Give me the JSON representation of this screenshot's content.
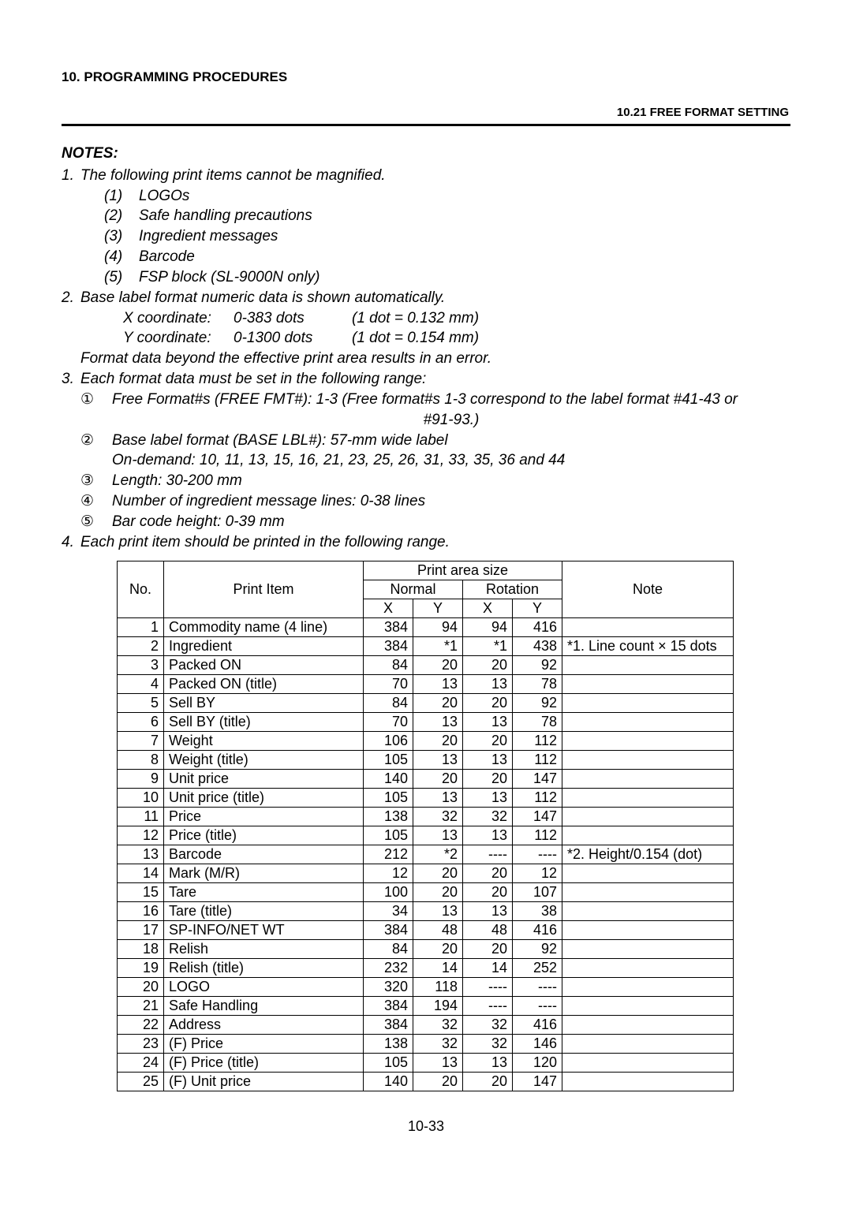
{
  "chapter_heading": "10.  PROGRAMMING PROCEDURES",
  "section_heading": "10.21 FREE FORMAT SETTING",
  "notes_title": "NOTES:",
  "note1": {
    "num": "1.",
    "text": "The following print items cannot be magnified.",
    "items": [
      {
        "n": "(1)",
        "t": "LOGOs"
      },
      {
        "n": "(2)",
        "t": "Safe handling precautions"
      },
      {
        "n": "(3)",
        "t": "Ingredient messages"
      },
      {
        "n": "(4)",
        "t": "Barcode"
      },
      {
        "n": "(5)",
        "t": "FSP block (SL-9000N only)"
      }
    ]
  },
  "note2": {
    "num": "2.",
    "text": "Base label format numeric data is shown automatically.",
    "coords": [
      {
        "label": "X coordinate:",
        "range": "0-383 dots",
        "extra": "(1 dot = 0.132 mm)"
      },
      {
        "label": "Y coordinate:",
        "range": "0-1300 dots",
        "extra": "(1 dot = 0.154 mm)"
      }
    ],
    "tail": "Format data beyond the effective print area results in an error."
  },
  "note3": {
    "num": "3.",
    "text": "Each format data must be set in the following range:",
    "items": [
      {
        "n": "①",
        "t": "Free Format#s (FREE FMT#): 1-3 (Free format#s 1-3 correspond to the label format #41-43 or",
        "cont_center": "#91-93.)"
      },
      {
        "n": "②",
        "t": "Base label format (BASE LBL#):    57-mm wide label",
        "cont": "On-demand: 10, 11, 13, 15, 16, 21, 23, 25, 26, 31, 33, 35, 36 and 44"
      },
      {
        "n": "③",
        "t": "Length:   30-200 mm"
      },
      {
        "n": "④",
        "t": "Number of ingredient message lines:   0-38 lines"
      },
      {
        "n": "⑤",
        "t": "Bar code height:   0-39 mm"
      }
    ]
  },
  "note4": {
    "num": "4.",
    "text": "Each print item should be printed in the following range."
  },
  "table": {
    "head": {
      "no": "No.",
      "item": "Print Item",
      "area": "Print area size",
      "normal": "Normal",
      "rotation": "Rotation",
      "note": "Note",
      "x": "X",
      "y": "Y"
    },
    "rows": [
      {
        "no": "1",
        "item": "Commodity name (4 line)",
        "nx": "384",
        "ny": "94",
        "rx": "94",
        "ry": "416",
        "note": ""
      },
      {
        "no": "2",
        "item": "Ingredient",
        "nx": "384",
        "ny": "*1",
        "rx": "*1",
        "ry": "438",
        "note": "*1. Line count  ×  15 dots"
      },
      {
        "no": "3",
        "item": "Packed ON",
        "nx": "84",
        "ny": "20",
        "rx": "20",
        "ry": "92",
        "note": ""
      },
      {
        "no": "4",
        "item": "Packed ON (title)",
        "nx": "70",
        "ny": "13",
        "rx": "13",
        "ry": "78",
        "note": ""
      },
      {
        "no": "5",
        "item": "Sell BY",
        "nx": "84",
        "ny": "20",
        "rx": "20",
        "ry": "92",
        "note": ""
      },
      {
        "no": "6",
        "item": "Sell BY (title)",
        "nx": "70",
        "ny": "13",
        "rx": "13",
        "ry": "78",
        "note": ""
      },
      {
        "no": "7",
        "item": "Weight",
        "nx": "106",
        "ny": "20",
        "rx": "20",
        "ry": "112",
        "note": ""
      },
      {
        "no": "8",
        "item": "Weight (title)",
        "nx": "105",
        "ny": "13",
        "rx": "13",
        "ry": "112",
        "note": ""
      },
      {
        "no": "9",
        "item": "Unit price",
        "nx": "140",
        "ny": "20",
        "rx": "20",
        "ry": "147",
        "note": ""
      },
      {
        "no": "10",
        "item": "Unit price (title)",
        "nx": "105",
        "ny": "13",
        "rx": "13",
        "ry": "112",
        "note": ""
      },
      {
        "no": "11",
        "item": "Price",
        "nx": "138",
        "ny": "32",
        "rx": "32",
        "ry": "147",
        "note": ""
      },
      {
        "no": "12",
        "item": "Price (title)",
        "nx": "105",
        "ny": "13",
        "rx": "13",
        "ry": "112",
        "note": ""
      },
      {
        "no": "13",
        "item": "Barcode",
        "nx": "212",
        "ny": "*2",
        "rx": "----",
        "ry": "----",
        "note": "*2. Height/0.154 (dot)"
      },
      {
        "no": "14",
        "item": "Mark (M/R)",
        "nx": "12",
        "ny": "20",
        "rx": "20",
        "ry": "12",
        "note": ""
      },
      {
        "no": "15",
        "item": "Tare",
        "nx": "100",
        "ny": "20",
        "rx": "20",
        "ry": "107",
        "note": ""
      },
      {
        "no": "16",
        "item": "Tare (title)",
        "nx": "34",
        "ny": "13",
        "rx": "13",
        "ry": "38",
        "note": ""
      },
      {
        "no": "17",
        "item": "SP-INFO/NET WT",
        "nx": "384",
        "ny": "48",
        "rx": "48",
        "ry": "416",
        "note": ""
      },
      {
        "no": "18",
        "item": "Relish",
        "nx": "84",
        "ny": "20",
        "rx": "20",
        "ry": "92",
        "note": ""
      },
      {
        "no": "19",
        "item": "Relish (title)",
        "nx": "232",
        "ny": "14",
        "rx": "14",
        "ry": "252",
        "note": ""
      },
      {
        "no": "20",
        "item": "LOGO",
        "nx": "320",
        "ny": "118",
        "rx": "----",
        "ry": "----",
        "note": ""
      },
      {
        "no": "21",
        "item": "Safe Handling",
        "nx": "384",
        "ny": "194",
        "rx": "----",
        "ry": "----",
        "note": ""
      },
      {
        "no": "22",
        "item": "Address",
        "nx": "384",
        "ny": "32",
        "rx": "32",
        "ry": "416",
        "note": ""
      },
      {
        "no": "23",
        "item": "(F) Price",
        "nx": "138",
        "ny": "32",
        "rx": "32",
        "ry": "146",
        "note": ""
      },
      {
        "no": "24",
        "item": "(F) Price (title)",
        "nx": "105",
        "ny": "13",
        "rx": "13",
        "ry": "120",
        "note": ""
      },
      {
        "no": "25",
        "item": "(F) Unit price",
        "nx": "140",
        "ny": "20",
        "rx": "20",
        "ry": "147",
        "note": ""
      }
    ]
  },
  "page_number": "10-33"
}
